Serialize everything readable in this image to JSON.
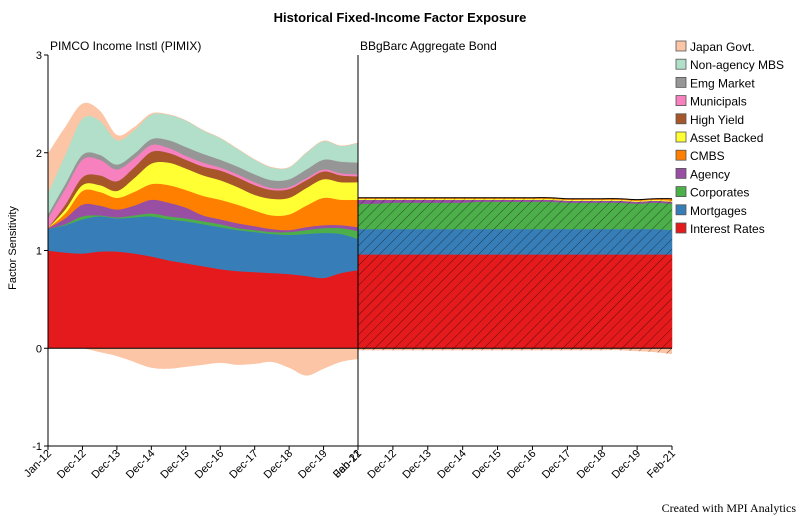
{
  "chart_data": {
    "type": "area",
    "title": "Historical Fixed-Income Factor Exposure",
    "ylabel": "Factor Sensitivity",
    "ylim": [
      -1,
      3
    ],
    "yticks": [
      "-1",
      "0",
      "1",
      "2",
      "3"
    ],
    "credit": "Created with MPI Analytics",
    "legend_position": "right",
    "series_styles": [
      {
        "name": "Japan Govt.",
        "color": "#fcc5a5"
      },
      {
        "name": "Non-agency MBS",
        "color": "#b2dfc9"
      },
      {
        "name": "Emg Market",
        "color": "#969696"
      },
      {
        "name": "Municipals",
        "color": "#f781bf"
      },
      {
        "name": "High Yield",
        "color": "#a65628"
      },
      {
        "name": "Asset Backed",
        "color": "#ffff33"
      },
      {
        "name": "CMBS",
        "color": "#ff7f00"
      },
      {
        "name": "Agency",
        "color": "#984ea3"
      },
      {
        "name": "Corporates",
        "color": "#4daf4a"
      },
      {
        "name": "Mortgages",
        "color": "#377eb8"
      },
      {
        "name": "Interest Rates",
        "color": "#e41a1c"
      }
    ],
    "panels": [
      {
        "title": "PIMCO Income Instl (PIMIX)",
        "x_labels": [
          "Jan-12",
          "Dec-12",
          "Dec-13",
          "Dec-14",
          "Dec-15",
          "Dec-16",
          "Dec-17",
          "Dec-18",
          "Dec-19",
          "Feb-21"
        ],
        "x": [
          "Jan-12",
          "Jun-12",
          "Dec-12",
          "Jun-13",
          "Dec-13",
          "Jun-14",
          "Dec-14",
          "Jun-15",
          "Dec-15",
          "Jun-16",
          "Dec-16",
          "Jun-17",
          "Dec-17",
          "Jun-18",
          "Dec-18",
          "Jun-19",
          "Dec-19",
          "Jun-20",
          "Feb-21"
        ],
        "series": [
          {
            "name": "Interest Rates",
            "values": [
              1.0,
              0.98,
              0.97,
              0.99,
              0.99,
              0.97,
              0.94,
              0.9,
              0.87,
              0.84,
              0.81,
              0.79,
              0.78,
              0.77,
              0.76,
              0.74,
              0.72,
              0.77,
              0.8
            ]
          },
          {
            "name": "Mortgages",
            "values": [
              0.22,
              0.28,
              0.35,
              0.36,
              0.34,
              0.37,
              0.41,
              0.42,
              0.43,
              0.43,
              0.43,
              0.42,
              0.41,
              0.4,
              0.4,
              0.43,
              0.46,
              0.4,
              0.32
            ]
          },
          {
            "name": "Corporates",
            "values": [
              0.0,
              0.01,
              0.03,
              0.01,
              0.01,
              0.02,
              0.03,
              0.03,
              0.03,
              0.03,
              0.03,
              0.02,
              0.02,
              0.02,
              0.03,
              0.04,
              0.05,
              0.06,
              0.08
            ]
          },
          {
            "name": "Agency",
            "values": [
              0.01,
              0.06,
              0.12,
              0.1,
              0.08,
              0.1,
              0.14,
              0.14,
              0.11,
              0.06,
              0.05,
              0.05,
              0.04,
              0.03,
              0.02,
              0.03,
              0.03,
              0.03,
              0.04
            ]
          },
          {
            "name": "CMBS",
            "values": [
              0.0,
              0.05,
              0.14,
              0.14,
              0.12,
              0.14,
              0.16,
              0.18,
              0.18,
              0.2,
              0.2,
              0.19,
              0.16,
              0.14,
              0.16,
              0.22,
              0.28,
              0.26,
              0.28
            ]
          },
          {
            "name": "Asset Backed",
            "values": [
              0.0,
              0.04,
              0.06,
              0.07,
              0.07,
              0.14,
              0.21,
              0.23,
              0.22,
              0.21,
              0.2,
              0.18,
              0.16,
              0.17,
              0.17,
              0.18,
              0.19,
              0.18,
              0.18
            ]
          },
          {
            "name": "High Yield",
            "values": [
              0.0,
              0.05,
              0.08,
              0.1,
              0.1,
              0.11,
              0.12,
              0.1,
              0.09,
              0.09,
              0.1,
              0.1,
              0.1,
              0.09,
              0.09,
              0.08,
              0.08,
              0.07,
              0.06
            ]
          },
          {
            "name": "Municipals",
            "values": [
              0.1,
              0.16,
              0.18,
              0.16,
              0.12,
              0.09,
              0.07,
              0.05,
              0.04,
              0.04,
              0.03,
              0.03,
              0.03,
              0.02,
              0.02,
              0.02,
              0.02,
              0.02,
              0.02
            ]
          },
          {
            "name": "Emg Market",
            "values": [
              0.04,
              0.05,
              0.05,
              0.05,
              0.05,
              0.05,
              0.06,
              0.08,
              0.09,
              0.09,
              0.08,
              0.08,
              0.08,
              0.08,
              0.08,
              0.09,
              0.1,
              0.12,
              0.12
            ]
          },
          {
            "name": "Non-agency MBS",
            "values": [
              0.22,
              0.3,
              0.37,
              0.35,
              0.25,
              0.24,
              0.25,
              0.26,
              0.27,
              0.24,
              0.22,
              0.18,
              0.15,
              0.13,
              0.12,
              0.17,
              0.19,
              0.16,
              0.2
            ]
          },
          {
            "name": "Japan Govt.",
            "values": [
              0.4,
              0.28,
              0.15,
              0.1,
              0.05,
              0.03,
              0.01,
              0.0,
              0.0,
              0.0,
              0.0,
              0.0,
              0.0,
              0.0,
              0.0,
              0.0,
              0.0,
              0.0,
              0.0
            ]
          }
        ],
        "negative_series": {
          "name": "Japan Govt.",
          "values": [
            0.0,
            0.0,
            0.0,
            -0.04,
            -0.08,
            -0.14,
            -0.2,
            -0.21,
            -0.19,
            -0.17,
            -0.15,
            -0.17,
            -0.16,
            -0.14,
            -0.2,
            -0.28,
            -0.21,
            -0.14,
            -0.11
          ]
        }
      },
      {
        "title": "BBgBarc Aggregate Bond",
        "hatched": true,
        "x_labels": [
          "Jan-12",
          "Dec-12",
          "Dec-13",
          "Dec-14",
          "Dec-15",
          "Dec-16",
          "Dec-17",
          "Dec-18",
          "Dec-19",
          "Feb-21"
        ],
        "x": [
          "Jan-12",
          "Jun-12",
          "Dec-12",
          "Jun-13",
          "Dec-13",
          "Jun-14",
          "Dec-14",
          "Jun-15",
          "Dec-15",
          "Jun-16",
          "Dec-16",
          "Jun-17",
          "Dec-17",
          "Jun-18",
          "Dec-18",
          "Jun-19",
          "Dec-19",
          "Jun-20",
          "Feb-21"
        ],
        "series": [
          {
            "name": "Interest Rates",
            "values": [
              0.96,
              0.96,
              0.96,
              0.96,
              0.96,
              0.96,
              0.96,
              0.96,
              0.96,
              0.96,
              0.96,
              0.96,
              0.96,
              0.96,
              0.96,
              0.96,
              0.96,
              0.96,
              0.96
            ]
          },
          {
            "name": "Mortgages",
            "values": [
              0.26,
              0.26,
              0.26,
              0.26,
              0.26,
              0.26,
              0.26,
              0.26,
              0.26,
              0.26,
              0.26,
              0.26,
              0.26,
              0.26,
              0.26,
              0.26,
              0.26,
              0.26,
              0.25
            ]
          },
          {
            "name": "Corporates",
            "values": [
              0.26,
              0.26,
              0.27,
              0.27,
              0.27,
              0.27,
              0.27,
              0.28,
              0.28,
              0.28,
              0.28,
              0.28,
              0.27,
              0.27,
              0.27,
              0.27,
              0.26,
              0.27,
              0.27
            ]
          },
          {
            "name": "Agency",
            "values": [
              0.04,
              0.04,
              0.03,
              0.03,
              0.03,
              0.03,
              0.03,
              0.02,
              0.02,
              0.02,
              0.02,
              0.02,
              0.02,
              0.02,
              0.02,
              0.02,
              0.02,
              0.02,
              0.02
            ]
          },
          {
            "name": "Asset Backed",
            "values": [
              0.01,
              0.01,
              0.01,
              0.01,
              0.01,
              0.01,
              0.01,
              0.01,
              0.01,
              0.01,
              0.01,
              0.01,
              0.01,
              0.01,
              0.01,
              0.01,
              0.01,
              0.01,
              0.01
            ]
          },
          {
            "name": "CMBS",
            "values": [
              0.01,
              0.01,
              0.01,
              0.01,
              0.01,
              0.01,
              0.01,
              0.01,
              0.01,
              0.01,
              0.01,
              0.01,
              0.01,
              0.01,
              0.01,
              0.01,
              0.01,
              0.01,
              0.02
            ]
          }
        ],
        "negative_series": {
          "name": "Japan Govt.",
          "values": [
            -0.02,
            -0.02,
            -0.02,
            -0.02,
            -0.02,
            -0.02,
            -0.02,
            -0.02,
            -0.02,
            -0.02,
            -0.02,
            -0.02,
            -0.02,
            -0.02,
            -0.02,
            -0.02,
            -0.03,
            -0.04,
            -0.06
          ]
        }
      }
    ]
  }
}
